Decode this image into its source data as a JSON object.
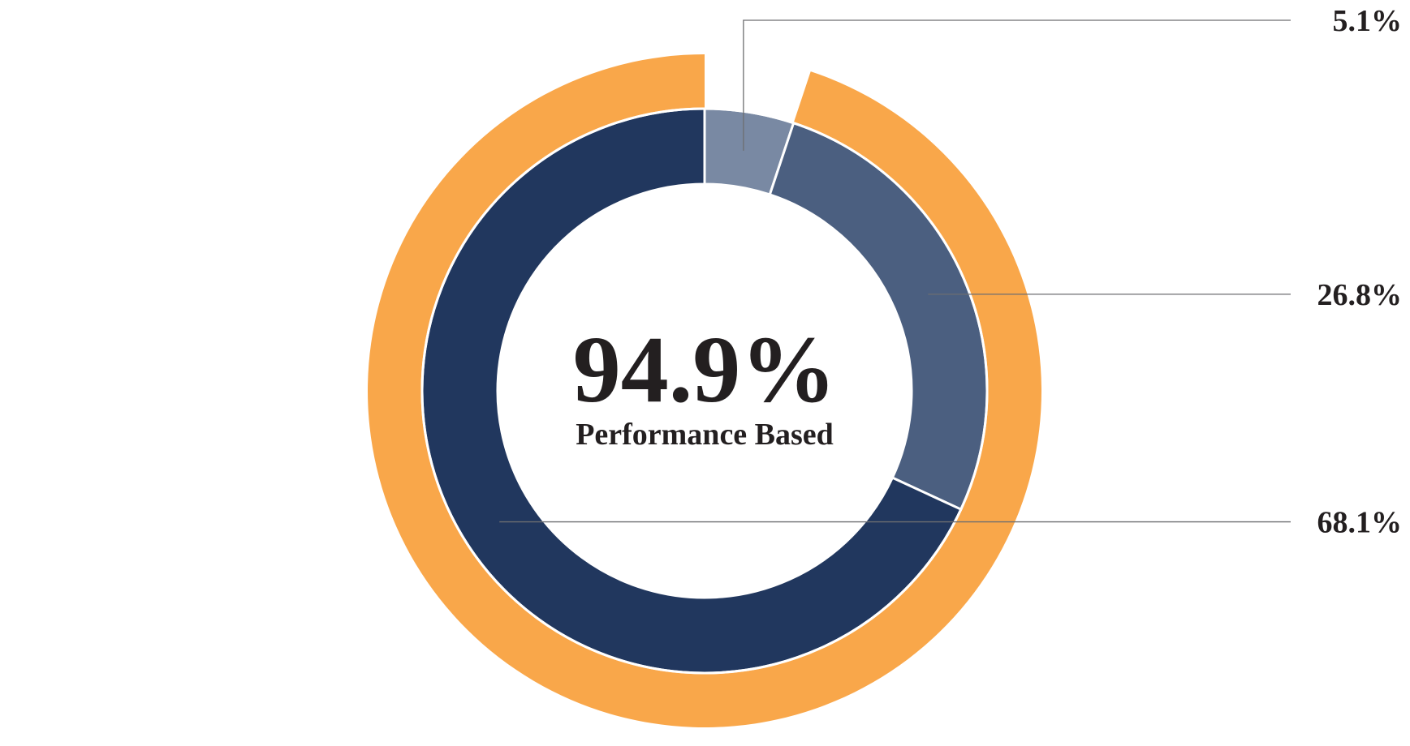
{
  "chart_data": {
    "type": "pie",
    "center": {
      "value": "94.9%",
      "caption": "Performance Based"
    },
    "outer_ring": {
      "values": [
        94.9,
        5.1
      ],
      "colors": [
        "#f9a74a",
        "#ffffff"
      ]
    },
    "inner_ring": {
      "values": [
        5.1,
        26.8,
        68.1
      ],
      "labels": [
        "5.1%",
        "26.8%",
        "68.1%"
      ],
      "colors": [
        "#7989a3",
        "#4b5f80",
        "#21375e"
      ]
    }
  }
}
